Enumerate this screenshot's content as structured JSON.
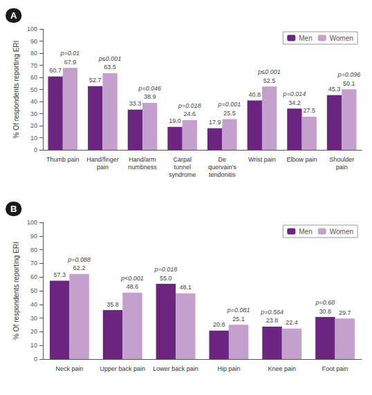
{
  "chart_data": [
    {
      "type": "bar",
      "title": "A",
      "ylabel": "% Of respondents reporting ERI",
      "categories": [
        "Thumb pain",
        "Hand/finger\npain",
        "Hand/arm\nnumbness",
        "Carpal\ntunnel\nsyndrome",
        "De\nquervain's\ntendonitis",
        "Wrist pain",
        "Elbow pain",
        "Shoulder\npain"
      ],
      "series": [
        {
          "name": "Men",
          "color": "#6B2580",
          "values": [
            60.7,
            52.7,
            33.3,
            19.0,
            17.9,
            40.8,
            34.2,
            45.3
          ],
          "value_labels": [
            "60.7",
            "52.7",
            "33.3",
            "19.0",
            "17.9",
            "40.8",
            "34.2",
            "45.3"
          ]
        },
        {
          "name": "Women",
          "color": "#C4A0CC",
          "values": [
            67.9,
            63.5,
            38.9,
            24.6,
            25.5,
            52.5,
            27.5,
            50.1
          ]
        }
      ],
      "annotations": [
        "p=0.01",
        "p≤0.001",
        "p=0.046",
        "p=0.018",
        "p=0.001",
        "p≤0.001",
        "p=0.014",
        "p=0.096"
      ],
      "ylim": [
        0,
        100
      ],
      "yticks": [
        0,
        10,
        20,
        30,
        40,
        50,
        60,
        70,
        80,
        90,
        100
      ],
      "grid": false,
      "legend": "upper right",
      "data_labels": true
    },
    {
      "type": "bar",
      "title": "B",
      "ylabel": "% Of respondents reporting ERI",
      "categories": [
        "Neck pain",
        "Upper back pain",
        "Lower back pain",
        "Hip pain",
        "Knee pain",
        "Foot pain"
      ],
      "series": [
        {
          "name": "Men",
          "color": "#6B2580",
          "values": [
            57.3,
            35.8,
            55.0,
            20.8,
            23.8,
            30.8
          ],
          "value_labels": [
            "57.3",
            "35.8",
            "55.0",
            "20.8",
            "23.8",
            "30.8"
          ]
        },
        {
          "name": "Women",
          "color": "#C4A0CC",
          "values": [
            62.2,
            48.6,
            48.1,
            25.1,
            22.4,
            29.7
          ]
        }
      ],
      "annotations": [
        "p=0.088",
        "p<0.001",
        "p=0.018",
        "p=0.081",
        "p=0.564",
        "p=0.68"
      ],
      "ylim": [
        0,
        100
      ],
      "yticks": [
        0,
        10,
        20,
        30,
        40,
        50,
        60,
        70,
        80,
        90,
        100
      ],
      "grid": false,
      "legend": "upper right",
      "data_labels": true
    }
  ]
}
